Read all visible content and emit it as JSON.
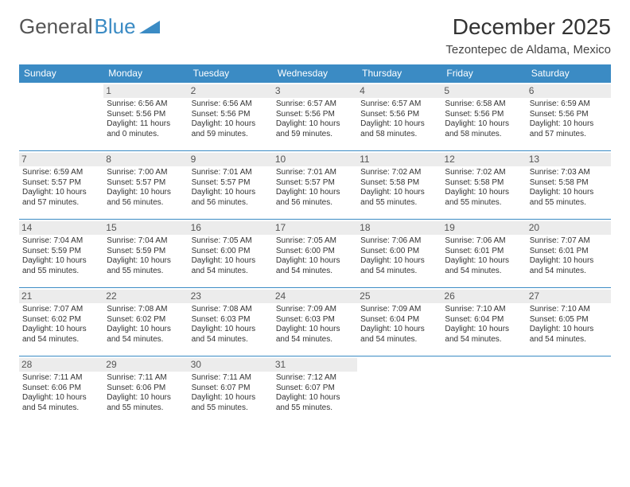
{
  "logo": {
    "text_general": "General",
    "text_blue": "Blue"
  },
  "title": "December 2025",
  "location": "Tezontepec de Aldama, Mexico",
  "colors": {
    "header_bg": "#3b8bc4",
    "header_text": "#ffffff",
    "daynum_bg": "#ececec",
    "border": "#3b8bc4",
    "body_bg": "#ffffff",
    "text": "#333333"
  },
  "fonts": {
    "title_size": 28,
    "location_size": 15,
    "dayhead_size": 12,
    "cell_size": 10
  },
  "weekdays": [
    "Sunday",
    "Monday",
    "Tuesday",
    "Wednesday",
    "Thursday",
    "Friday",
    "Saturday"
  ],
  "grid": {
    "cols": 7,
    "rows": 5,
    "first_weekday_index": 1,
    "days_in_month": 31
  },
  "days": {
    "1": {
      "sunrise": "6:56 AM",
      "sunset": "5:56 PM",
      "daylight": "11 hours and 0 minutes."
    },
    "2": {
      "sunrise": "6:56 AM",
      "sunset": "5:56 PM",
      "daylight": "10 hours and 59 minutes."
    },
    "3": {
      "sunrise": "6:57 AM",
      "sunset": "5:56 PM",
      "daylight": "10 hours and 59 minutes."
    },
    "4": {
      "sunrise": "6:57 AM",
      "sunset": "5:56 PM",
      "daylight": "10 hours and 58 minutes."
    },
    "5": {
      "sunrise": "6:58 AM",
      "sunset": "5:56 PM",
      "daylight": "10 hours and 58 minutes."
    },
    "6": {
      "sunrise": "6:59 AM",
      "sunset": "5:56 PM",
      "daylight": "10 hours and 57 minutes."
    },
    "7": {
      "sunrise": "6:59 AM",
      "sunset": "5:57 PM",
      "daylight": "10 hours and 57 minutes."
    },
    "8": {
      "sunrise": "7:00 AM",
      "sunset": "5:57 PM",
      "daylight": "10 hours and 56 minutes."
    },
    "9": {
      "sunrise": "7:01 AM",
      "sunset": "5:57 PM",
      "daylight": "10 hours and 56 minutes."
    },
    "10": {
      "sunrise": "7:01 AM",
      "sunset": "5:57 PM",
      "daylight": "10 hours and 56 minutes."
    },
    "11": {
      "sunrise": "7:02 AM",
      "sunset": "5:58 PM",
      "daylight": "10 hours and 55 minutes."
    },
    "12": {
      "sunrise": "7:02 AM",
      "sunset": "5:58 PM",
      "daylight": "10 hours and 55 minutes."
    },
    "13": {
      "sunrise": "7:03 AM",
      "sunset": "5:58 PM",
      "daylight": "10 hours and 55 minutes."
    },
    "14": {
      "sunrise": "7:04 AM",
      "sunset": "5:59 PM",
      "daylight": "10 hours and 55 minutes."
    },
    "15": {
      "sunrise": "7:04 AM",
      "sunset": "5:59 PM",
      "daylight": "10 hours and 55 minutes."
    },
    "16": {
      "sunrise": "7:05 AM",
      "sunset": "6:00 PM",
      "daylight": "10 hours and 54 minutes."
    },
    "17": {
      "sunrise": "7:05 AM",
      "sunset": "6:00 PM",
      "daylight": "10 hours and 54 minutes."
    },
    "18": {
      "sunrise": "7:06 AM",
      "sunset": "6:00 PM",
      "daylight": "10 hours and 54 minutes."
    },
    "19": {
      "sunrise": "7:06 AM",
      "sunset": "6:01 PM",
      "daylight": "10 hours and 54 minutes."
    },
    "20": {
      "sunrise": "7:07 AM",
      "sunset": "6:01 PM",
      "daylight": "10 hours and 54 minutes."
    },
    "21": {
      "sunrise": "7:07 AM",
      "sunset": "6:02 PM",
      "daylight": "10 hours and 54 minutes."
    },
    "22": {
      "sunrise": "7:08 AM",
      "sunset": "6:02 PM",
      "daylight": "10 hours and 54 minutes."
    },
    "23": {
      "sunrise": "7:08 AM",
      "sunset": "6:03 PM",
      "daylight": "10 hours and 54 minutes."
    },
    "24": {
      "sunrise": "7:09 AM",
      "sunset": "6:03 PM",
      "daylight": "10 hours and 54 minutes."
    },
    "25": {
      "sunrise": "7:09 AM",
      "sunset": "6:04 PM",
      "daylight": "10 hours and 54 minutes."
    },
    "26": {
      "sunrise": "7:10 AM",
      "sunset": "6:04 PM",
      "daylight": "10 hours and 54 minutes."
    },
    "27": {
      "sunrise": "7:10 AM",
      "sunset": "6:05 PM",
      "daylight": "10 hours and 54 minutes."
    },
    "28": {
      "sunrise": "7:11 AM",
      "sunset": "6:06 PM",
      "daylight": "10 hours and 54 minutes."
    },
    "29": {
      "sunrise": "7:11 AM",
      "sunset": "6:06 PM",
      "daylight": "10 hours and 55 minutes."
    },
    "30": {
      "sunrise": "7:11 AM",
      "sunset": "6:07 PM",
      "daylight": "10 hours and 55 minutes."
    },
    "31": {
      "sunrise": "7:12 AM",
      "sunset": "6:07 PM",
      "daylight": "10 hours and 55 minutes."
    }
  },
  "labels": {
    "sunrise": "Sunrise:",
    "sunset": "Sunset:",
    "daylight": "Daylight:"
  }
}
